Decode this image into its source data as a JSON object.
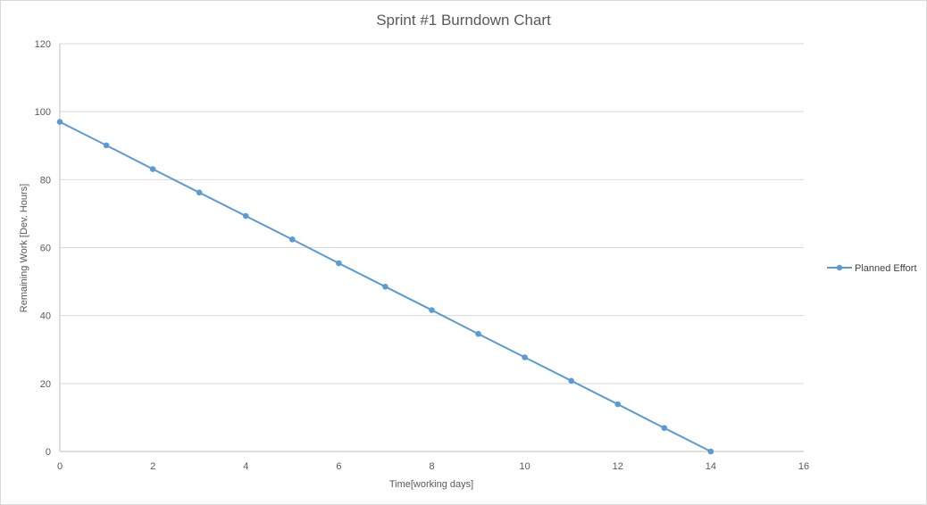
{
  "chart_data": {
    "type": "line",
    "title": "Sprint #1 Burndown Chart",
    "xlabel": "Time[working days]",
    "ylabel": "Remaining Work [Dev. Hours]",
    "xlim": [
      0,
      16
    ],
    "ylim": [
      0,
      120
    ],
    "xticks": [
      0,
      2,
      4,
      6,
      8,
      10,
      12,
      14,
      16
    ],
    "yticks": [
      0,
      20,
      40,
      60,
      80,
      100,
      120
    ],
    "grid": "horizontal",
    "legend_position": "right",
    "series": [
      {
        "name": "Planned Effort",
        "color": "#5B9BD5",
        "marker": "circle",
        "x": [
          0,
          1,
          2,
          3,
          4,
          5,
          6,
          7,
          8,
          9,
          10,
          11,
          12,
          13,
          14
        ],
        "y": [
          97,
          90.1,
          83.1,
          76.2,
          69.3,
          62.4,
          55.4,
          48.5,
          41.6,
          34.6,
          27.7,
          20.8,
          13.9,
          6.9,
          0
        ]
      }
    ]
  }
}
